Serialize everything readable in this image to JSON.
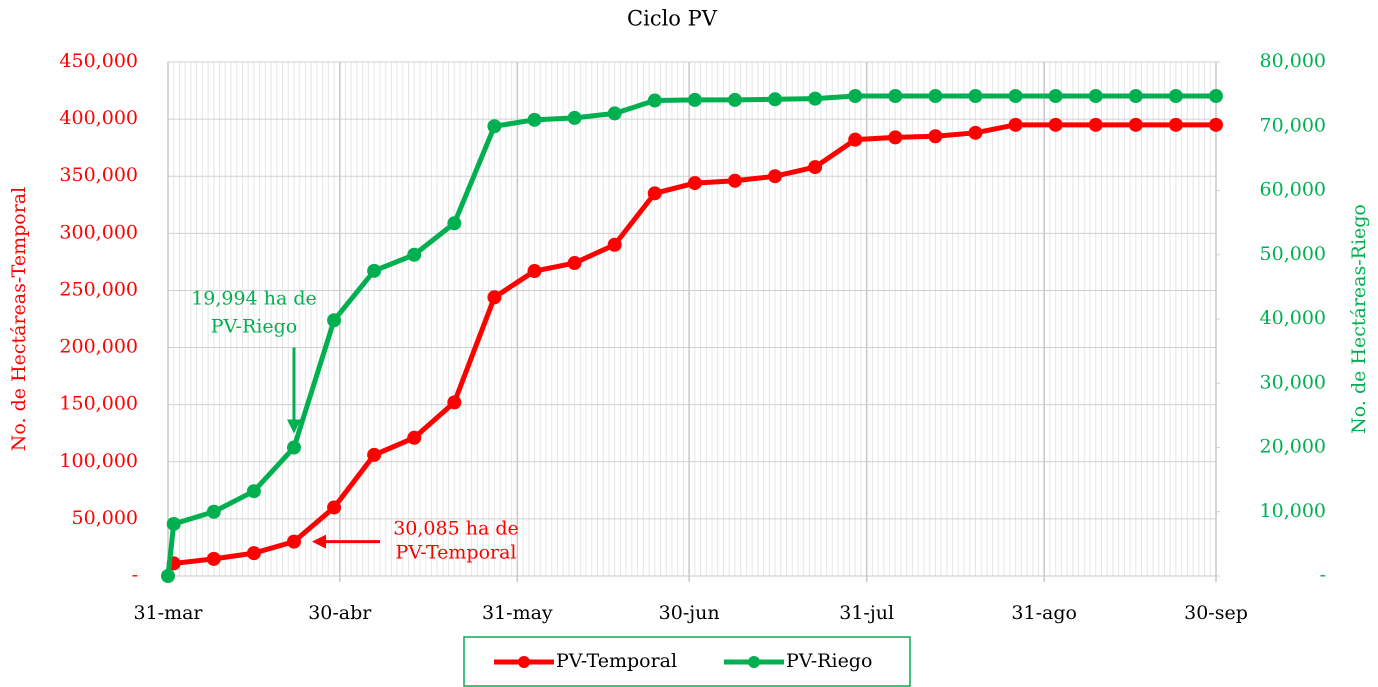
{
  "chart_data": {
    "type": "line",
    "title": "Ciclo PV",
    "y_label": "No. de Hectáreas-Temporal",
    "y2_label": "No. de Hectáreas-Riego",
    "xlim": [
      0,
      183
    ],
    "xticks": [
      {
        "value": 0,
        "label": "31-mar"
      },
      {
        "value": 30,
        "label": "30-abr"
      },
      {
        "value": 61,
        "label": "31-may"
      },
      {
        "value": 91,
        "label": "30-jun"
      },
      {
        "value": 122,
        "label": "31-jul"
      },
      {
        "value": 153,
        "label": "31-ago"
      },
      {
        "value": 183,
        "label": "30-sep"
      }
    ],
    "ylim": [
      0,
      450000
    ],
    "yticks": [
      {
        "value": 0,
        "label": "-"
      },
      {
        "value": 50000,
        "label": "50,000"
      },
      {
        "value": 100000,
        "label": "100,000"
      },
      {
        "value": 150000,
        "label": "150,000"
      },
      {
        "value": 200000,
        "label": "200,000"
      },
      {
        "value": 250000,
        "label": "250,000"
      },
      {
        "value": 300000,
        "label": "300,000"
      },
      {
        "value": 350000,
        "label": "350,000"
      },
      {
        "value": 400000,
        "label": "400,000"
      },
      {
        "value": 450000,
        "label": "450,000"
      }
    ],
    "y2lim": [
      0,
      80000
    ],
    "y2ticks": [
      {
        "value": 0,
        "label": "-"
      },
      {
        "value": 10000,
        "label": "10,000"
      },
      {
        "value": 20000,
        "label": "20,000"
      },
      {
        "value": 30000,
        "label": "30,000"
      },
      {
        "value": 40000,
        "label": "40,000"
      },
      {
        "value": 50000,
        "label": "50,000"
      },
      {
        "value": 60000,
        "label": "60,000"
      },
      {
        "value": 70000,
        "label": "70,000"
      },
      {
        "value": 80000,
        "label": "80,000"
      }
    ],
    "grid": true,
    "legend": "bottom",
    "series": [
      {
        "name": "PV-Temporal",
        "color": "#ff0000",
        "axis": "y",
        "x": [
          1,
          8,
          15,
          22,
          29,
          36,
          43,
          50,
          57,
          64,
          71,
          78,
          85,
          92,
          99,
          106,
          113,
          120,
          127,
          134,
          141,
          148,
          155,
          162,
          169,
          176,
          183
        ],
        "values": [
          11000,
          15000,
          20000,
          30085,
          60000,
          106000,
          121000,
          152000,
          244000,
          267000,
          274000,
          290000,
          335000,
          344000,
          346000,
          350000,
          358000,
          382000,
          384000,
          385000,
          388000,
          395000,
          395000,
          395000,
          395000,
          395000,
          395000
        ]
      },
      {
        "name": "PV-Riego",
        "color": "#00b050",
        "axis": "y2",
        "x": [
          0,
          1,
          8,
          15,
          22,
          29,
          36,
          43,
          50,
          57,
          64,
          71,
          78,
          85,
          92,
          99,
          106,
          113,
          120,
          127,
          134,
          141,
          148,
          155,
          162,
          169,
          176,
          183
        ],
        "values": [
          0,
          8100,
          10000,
          13200,
          19994,
          39800,
          47500,
          50000,
          54900,
          70000,
          71000,
          71300,
          72000,
          74000,
          74100,
          74100,
          74200,
          74300,
          74700,
          74700,
          74700,
          74700,
          74700,
          74700,
          74700,
          74700,
          74700,
          74700
        ]
      }
    ],
    "annotations": [
      {
        "lines": [
          "19,994 ha de",
          "PV-Riego"
        ],
        "series": 1,
        "point": 4
      },
      {
        "lines": [
          "30,085 ha de",
          "PV-Temporal"
        ],
        "series": 0,
        "point": 3
      }
    ]
  }
}
